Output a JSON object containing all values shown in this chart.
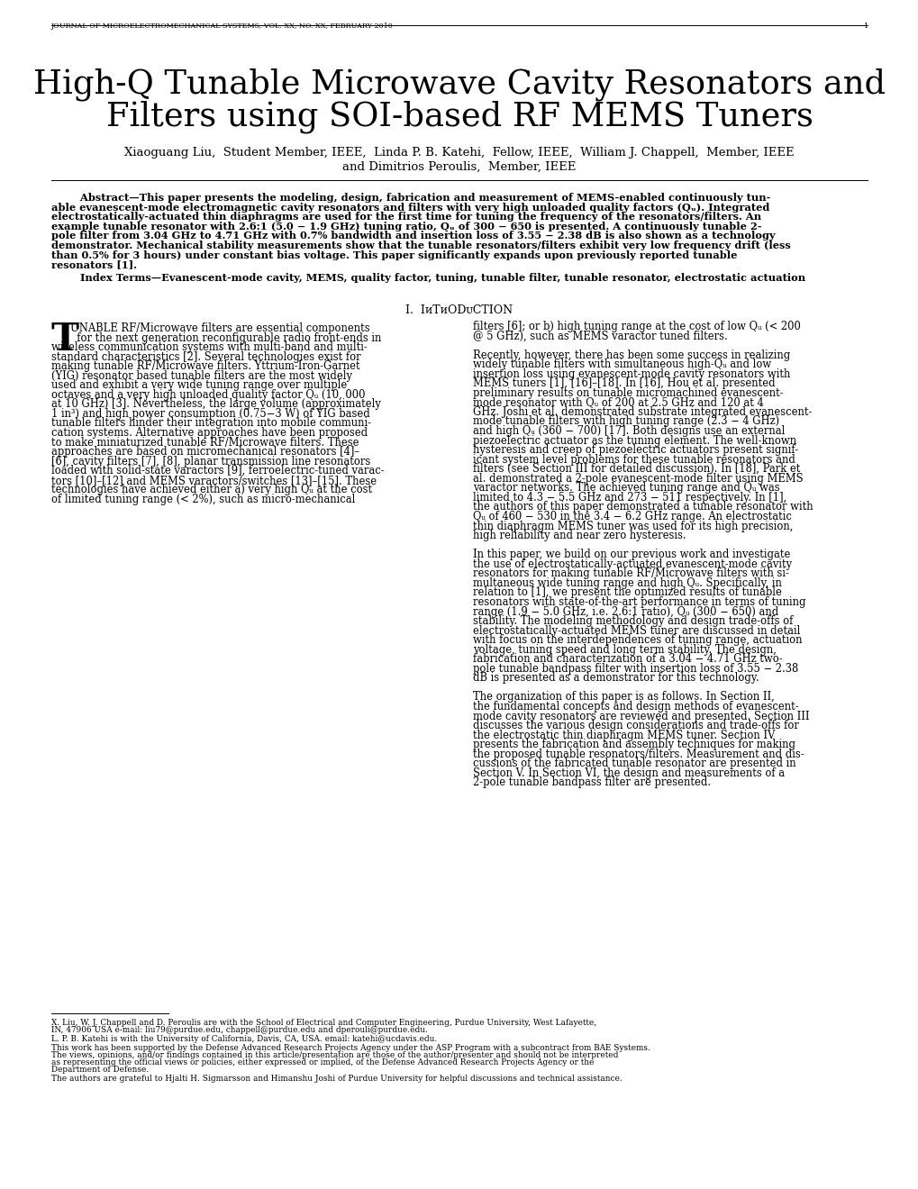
{
  "header": "JOURNAL OF MICROELECTROMECHANICAL SYSTEMS, VOL. XX, NO. XX, FEBRUARY 2010",
  "page_number": "1",
  "title_line1": "High-Q Tunable Microwave Cavity Resonators and",
  "title_line2": "Filters using SOI-based RF MEMS Tuners",
  "bg_color": "#ffffff"
}
